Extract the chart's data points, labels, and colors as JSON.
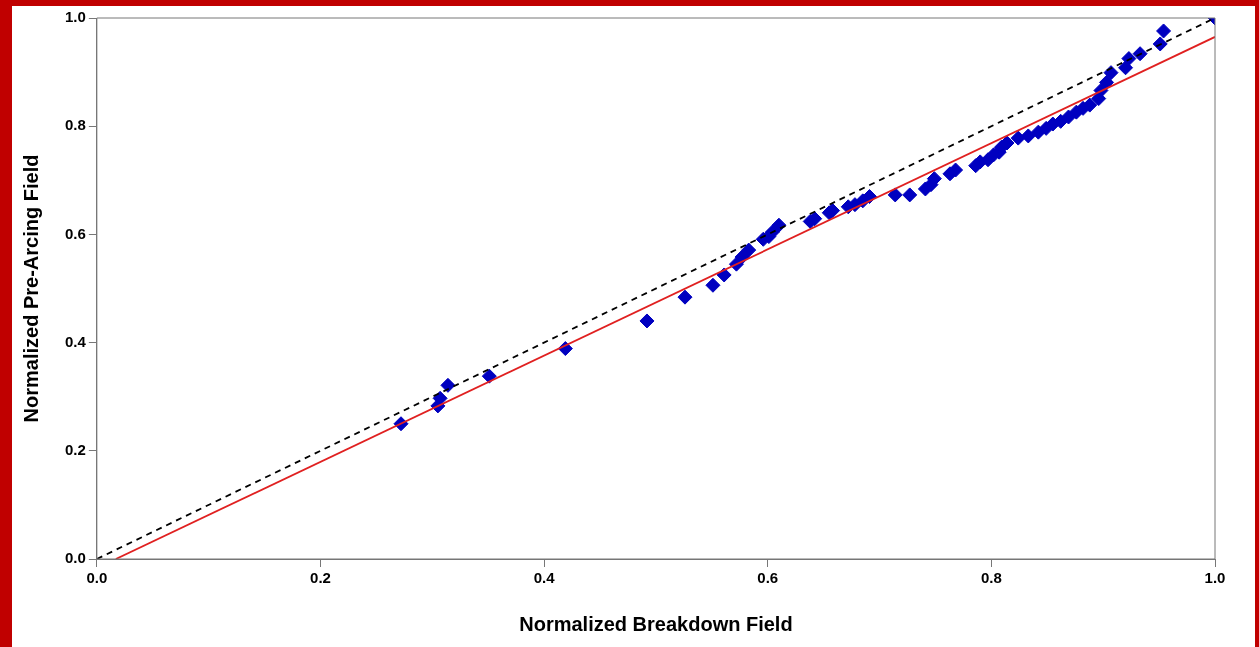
{
  "chart_data": {
    "type": "scatter",
    "xlabel": "Normalized Breakdown Field",
    "ylabel": "Normalized Pre-Arcing Field",
    "xlim": [
      0,
      1
    ],
    "ylim": [
      0,
      1
    ],
    "xticks": [
      {
        "value": 0,
        "label": "0.0"
      },
      0.2,
      0.4,
      0.6,
      0.8,
      {
        "value": 1,
        "label": "1.0"
      }
    ],
    "yticks": [
      {
        "value": 0,
        "label": "0.0"
      },
      0.2,
      0.4,
      0.6,
      0.8,
      {
        "value": 1,
        "label": "1.0"
      }
    ],
    "grid": false,
    "legend": false,
    "marker": "diamond",
    "series": [
      {
        "type": "line",
        "color": "#000000",
        "line_style": "dashed",
        "marker": "none",
        "x": [
          0,
          1
        ],
        "values": [
          0,
          1
        ]
      },
      {
        "type": "line",
        "color": "#e02020",
        "line_style": "solid",
        "marker": "none",
        "x": [
          0.017,
          1
        ],
        "values": [
          0,
          0.965
        ]
      },
      {
        "color": "#0000c0",
        "x": [
          0.272,
          0.305,
          0.307,
          0.314,
          0.351,
          0.419,
          0.492,
          0.526,
          0.551,
          0.561,
          0.572,
          0.577,
          0.583,
          0.596,
          0.601,
          0.604,
          0.61,
          0.638,
          0.642,
          0.655,
          0.658,
          0.672,
          0.678,
          0.685,
          0.691,
          0.714,
          0.727,
          0.741,
          0.746,
          0.749,
          0.763,
          0.768,
          0.786,
          0.79,
          0.797,
          0.802,
          0.807,
          0.809,
          0.814,
          0.824,
          0.833,
          0.842,
          0.849,
          0.855,
          0.862,
          0.869,
          0.876,
          0.882,
          0.888,
          0.896,
          0.898,
          0.903,
          0.907,
          0.92,
          0.923,
          0.933,
          0.951,
          0.954,
          1.0
        ],
        "values": [
          0.25,
          0.283,
          0.297,
          0.321,
          0.338,
          0.389,
          0.44,
          0.484,
          0.506,
          0.525,
          0.545,
          0.558,
          0.571,
          0.591,
          0.596,
          0.604,
          0.617,
          0.624,
          0.629,
          0.64,
          0.644,
          0.651,
          0.655,
          0.662,
          0.67,
          0.673,
          0.673,
          0.684,
          0.692,
          0.703,
          0.712,
          0.719,
          0.727,
          0.734,
          0.738,
          0.747,
          0.752,
          0.761,
          0.769,
          0.778,
          0.782,
          0.789,
          0.796,
          0.804,
          0.809,
          0.817,
          0.826,
          0.833,
          0.839,
          0.851,
          0.866,
          0.881,
          0.899,
          0.908,
          0.925,
          0.934,
          0.952,
          0.976,
          1.0
        ]
      }
    ]
  }
}
